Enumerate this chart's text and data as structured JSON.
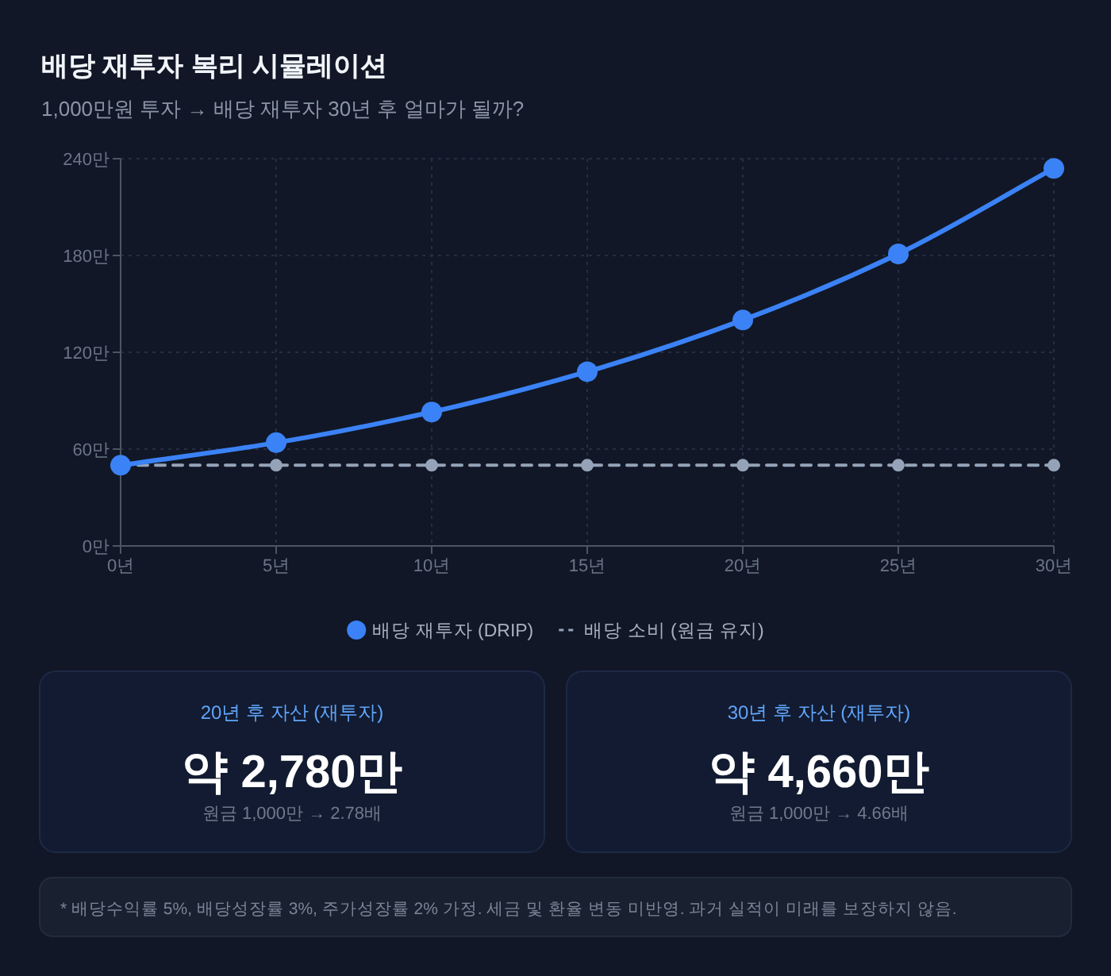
{
  "chart_data": [
    {
      "type": "line",
      "title": "배당 재투자 복리 시뮬레이션",
      "subtitle": "1,000만원 투자 → 배당 재투자 30년 후 얼마가 될까?",
      "x": [
        0,
        5,
        10,
        15,
        20,
        25,
        30
      ],
      "series": [
        {
          "name": "배당 재투자 (DRIP)",
          "color": "#3b82f6",
          "values": [
            50,
            64,
            83,
            108,
            140,
            181,
            234
          ],
          "marker": "circle",
          "line_style": "solid"
        },
        {
          "name": "배당 소비 (원금 유지)",
          "color": "#94a3b8",
          "values": [
            50,
            50,
            50,
            50,
            50,
            50,
            50
          ],
          "marker": "circle",
          "line_style": "dashed"
        }
      ],
      "xlim": [
        0,
        30
      ],
      "ylim": [
        0,
        240
      ],
      "xticks": [
        {
          "value": 0,
          "label": "0년"
        },
        {
          "value": 5,
          "label": "5년"
        },
        {
          "value": 10,
          "label": "10년"
        },
        {
          "value": 15,
          "label": "15년"
        },
        {
          "value": 20,
          "label": "20년"
        },
        {
          "value": 25,
          "label": "25년"
        },
        {
          "value": 30,
          "label": "30년"
        }
      ],
      "yticks": [
        {
          "value": 0,
          "label": "0만"
        },
        {
          "value": 60,
          "label": "60만"
        },
        {
          "value": 120,
          "label": "120만"
        },
        {
          "value": 180,
          "label": "180만"
        },
        {
          "value": 240,
          "label": "240만"
        }
      ],
      "grid": true,
      "legend": "bottom",
      "annotations": [
        "* 배당수익률 5%, 배당성장률 3%, 주가성장률 2% 가정. 세금 및 환율 변동 미반영. 과거 실적이 미래를 보장하지 않음."
      ]
    },
    {
      "type": "other",
      "title": "20년 후 자산 (재투자)",
      "annotations": [
        "약 2,780만",
        "원금 1,000만 → 2.78배"
      ]
    },
    {
      "type": "other",
      "title": "30년 후 자산 (재투자)",
      "annotations": [
        "약 4,660만",
        "원금 1,000만 → 4.66배"
      ]
    }
  ]
}
